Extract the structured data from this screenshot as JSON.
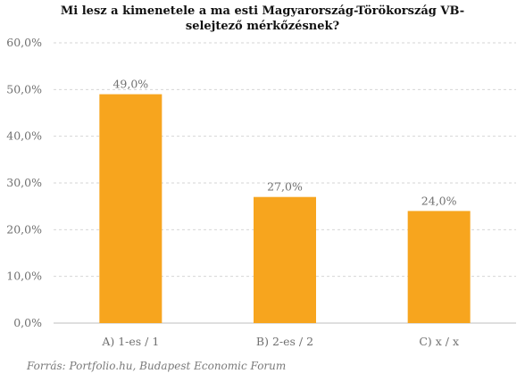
{
  "chart_data": {
    "type": "bar",
    "title_lines": [
      "Mi lesz a kimenetele a ma esti Magyarország-Törökország VB-",
      "selejtező mérkőzésnek?"
    ],
    "categories": [
      "A) 1-es / 1",
      "B) 2-es / 2",
      "C) x / x"
    ],
    "values": [
      49.0,
      27.0,
      24.0
    ],
    "value_labels": [
      "49,0%",
      "27,0%",
      "24,0%"
    ],
    "ylim": [
      0,
      60
    ],
    "yticks": [
      0,
      10,
      20,
      30,
      40,
      50,
      60
    ],
    "ytick_labels": [
      "0,0%",
      "10,0%",
      "20,0%",
      "30,0%",
      "40,0%",
      "50,0%",
      "60,0%"
    ],
    "bar_color": "#F7A51E",
    "grid": true,
    "legend": "none",
    "source": "Forrás: Portfolio.hu, Budapest Economic Forum"
  }
}
